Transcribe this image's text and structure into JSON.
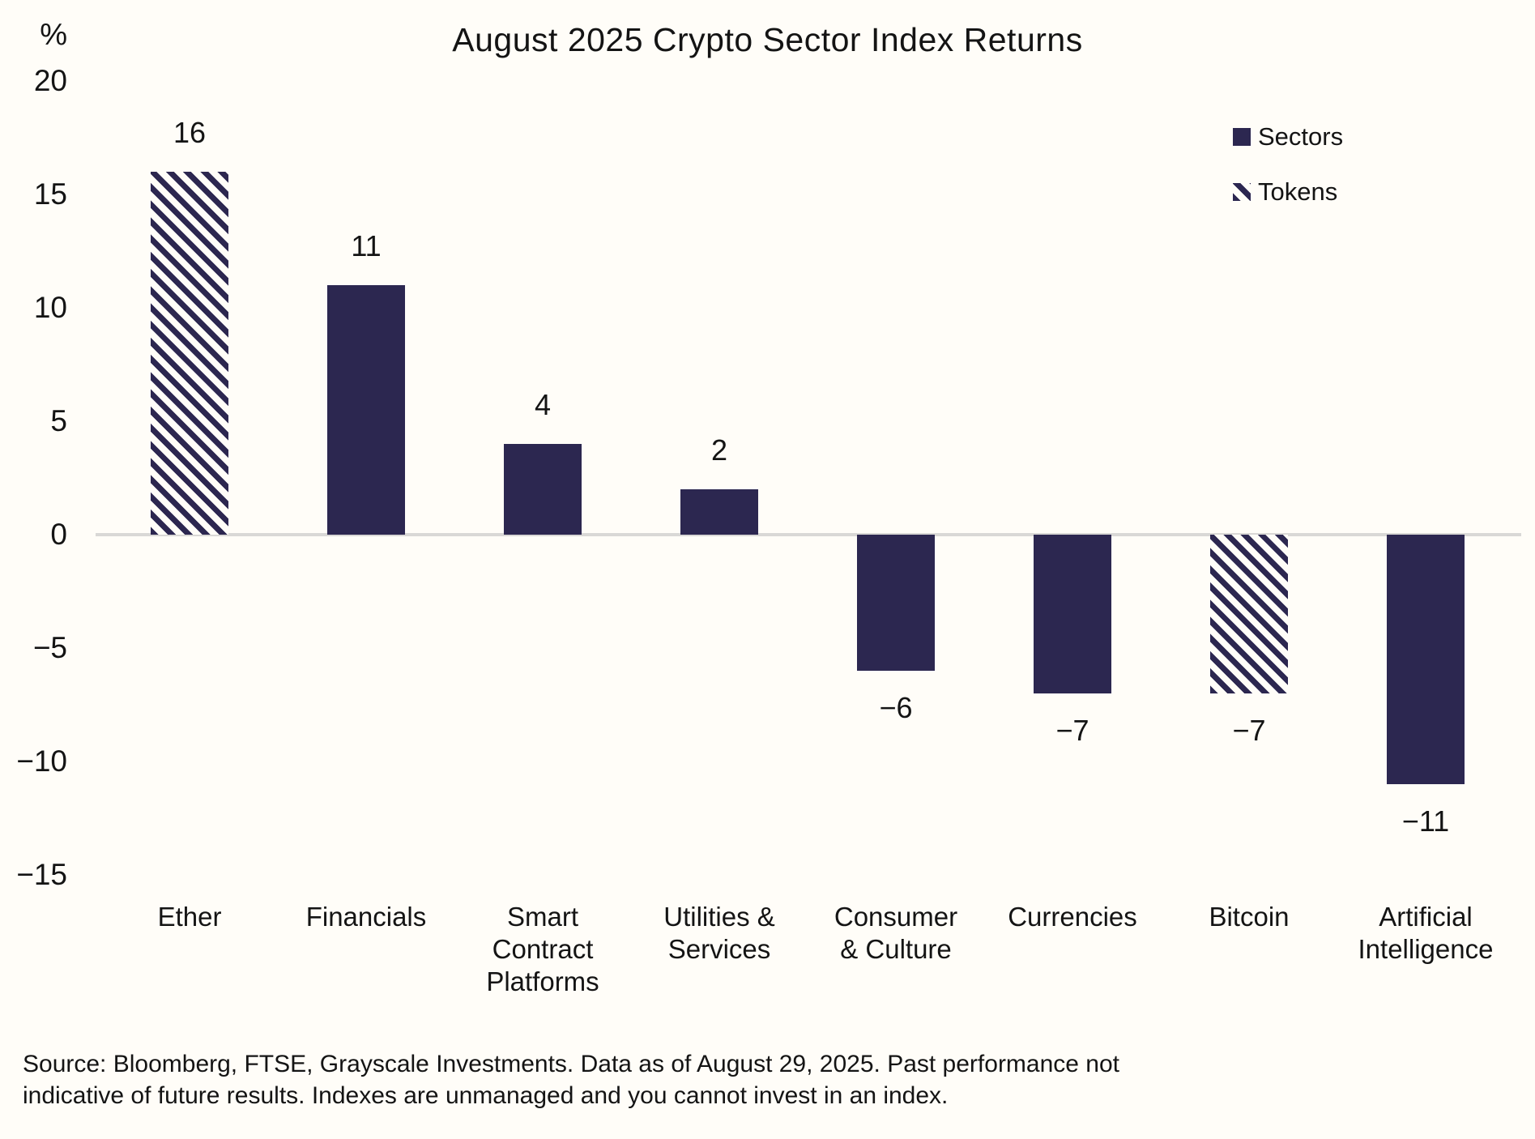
{
  "title": "August 2025 Crypto Sector Index Returns",
  "chart_data": {
    "type": "bar",
    "title": "August 2025 Crypto Sector Index Returns",
    "ylabel": "%",
    "ylim": [
      -15,
      20
    ],
    "ytick_values": [
      20,
      15,
      10,
      5,
      0,
      -5,
      -10,
      -15
    ],
    "ytick_labels": [
      "20",
      "15",
      "10",
      "5",
      "0",
      "−5",
      "−10",
      "−15"
    ],
    "grid": "zero-baseline-only",
    "legend_position": "top-right",
    "categories": [
      "Ether",
      "Financials",
      "Smart Contract Platforms",
      "Utilities & Services",
      "Consumer & Culture",
      "Currencies",
      "Bitcoin",
      "Artificial Intelligence"
    ],
    "category_label_lines": [
      [
        "Ether"
      ],
      [
        "Financials"
      ],
      [
        "Smart",
        "Contract",
        "Platforms"
      ],
      [
        "Utilities &",
        "Services"
      ],
      [
        "Consumer",
        "& Culture"
      ],
      [
        "Currencies"
      ],
      [
        "Bitcoin"
      ],
      [
        "Artificial",
        "Intelligence"
      ]
    ],
    "values": [
      16,
      11,
      4,
      2,
      -6,
      -7,
      -7,
      -11
    ],
    "value_labels": [
      "16",
      "11",
      "4",
      "2",
      "−6",
      "−7",
      "−7",
      "−11"
    ],
    "bar_styles": [
      "hatched",
      "solid",
      "solid",
      "solid",
      "solid",
      "solid",
      "hatched",
      "solid"
    ]
  },
  "legend": {
    "items": [
      {
        "label": "Sectors",
        "style": "solid"
      },
      {
        "label": "Tokens",
        "style": "hatched"
      }
    ]
  },
  "colors": {
    "bar_navy": "#2c2750",
    "hatch_gap": "#fffdf8",
    "baseline_gray": "#d9d8d6",
    "text": "#141414",
    "background": "#fffdf8"
  },
  "source_lines": [
    "Source: Bloomberg, FTSE, Grayscale Investments. Data as of August 29, 2025. Past performance not",
    "indicative of future results. Indexes are unmanaged and you cannot invest in an index."
  ]
}
